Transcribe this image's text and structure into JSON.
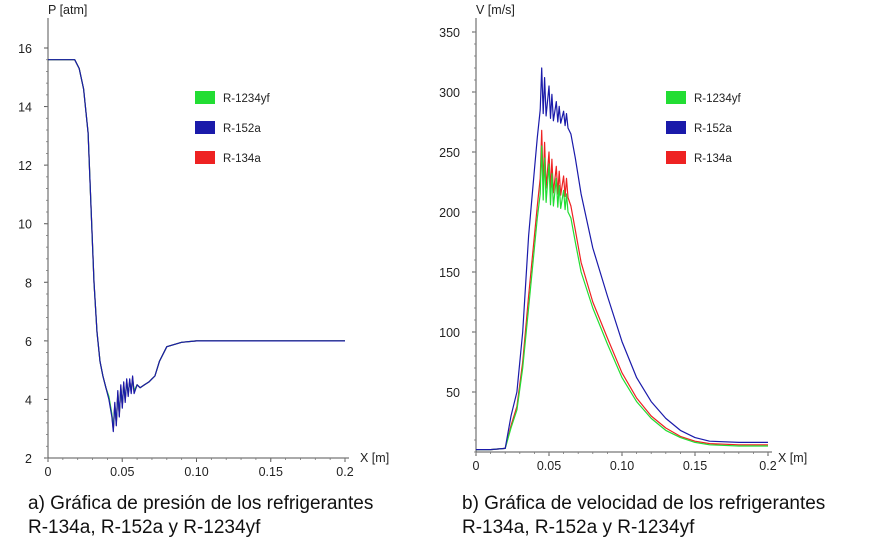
{
  "chart_data": [
    {
      "type": "line",
      "caption": {
        "line1": "a) Gráfica de presión de los refrigerantes",
        "line2": "R-134a, R-152a y R-1234yf"
      },
      "ylabel": "P [atm]",
      "xlabel": "X [m]",
      "xlim": [
        0,
        0.2
      ],
      "ylim": [
        2,
        16
      ],
      "x_ticks": [
        "0",
        "0.05",
        "0.10",
        "0.15",
        "0.2"
      ],
      "x_tick_values": [
        0,
        0.05,
        0.1,
        0.15,
        0.2
      ],
      "y_ticks": [
        "16",
        "14",
        "12",
        "10",
        "8",
        "6",
        "4",
        "2"
      ],
      "y_tick_values": [
        16,
        14,
        12,
        10,
        8,
        6,
        4,
        2
      ],
      "legend_position": "upper-right",
      "series": [
        {
          "name": "R-1234yf",
          "color": "#22dd33",
          "x": [
            0,
            0.012,
            0.018,
            0.021,
            0.024,
            0.027,
            0.029,
            0.031,
            0.033,
            0.035,
            0.037,
            0.039,
            0.041,
            0.043,
            0.044,
            0.045,
            0.046,
            0.047,
            0.048,
            0.049,
            0.05,
            0.051,
            0.052,
            0.053,
            0.054,
            0.055,
            0.056,
            0.057,
            0.058,
            0.06,
            0.062,
            0.065,
            0.068,
            0.07,
            0.072,
            0.075,
            0.08,
            0.09,
            0.1,
            0.12,
            0.15,
            0.18,
            0.2
          ],
          "y": [
            15.6,
            15.6,
            15.6,
            15.3,
            14.6,
            13.1,
            10.5,
            8.0,
            6.3,
            5.3,
            4.8,
            4.4,
            4.1,
            3.5,
            3.0,
            3.8,
            3.2,
            4.2,
            3.5,
            4.4,
            3.8,
            4.5,
            4.0,
            4.6,
            4.2,
            4.6,
            4.3,
            4.7,
            4.3,
            4.5,
            4.4,
            4.5,
            4.6,
            4.7,
            4.8,
            5.3,
            5.8,
            5.95,
            6.0,
            6.0,
            6.0,
            6.0,
            6.0
          ]
        },
        {
          "name": "R-152a",
          "color": "#1a1aaa",
          "x": [
            0,
            0.012,
            0.018,
            0.021,
            0.024,
            0.027,
            0.029,
            0.031,
            0.033,
            0.035,
            0.037,
            0.039,
            0.041,
            0.043,
            0.044,
            0.045,
            0.046,
            0.047,
            0.048,
            0.049,
            0.05,
            0.051,
            0.052,
            0.053,
            0.054,
            0.055,
            0.056,
            0.057,
            0.058,
            0.06,
            0.062,
            0.065,
            0.068,
            0.07,
            0.072,
            0.075,
            0.08,
            0.09,
            0.1,
            0.12,
            0.15,
            0.18,
            0.2
          ],
          "y": [
            15.6,
            15.6,
            15.6,
            15.3,
            14.6,
            13.1,
            10.5,
            8.0,
            6.3,
            5.3,
            4.8,
            4.4,
            4.0,
            3.4,
            2.9,
            3.9,
            3.1,
            4.3,
            3.4,
            4.5,
            3.7,
            4.6,
            3.9,
            4.7,
            4.1,
            4.7,
            4.2,
            4.8,
            4.2,
            4.5,
            4.4,
            4.5,
            4.6,
            4.7,
            4.8,
            5.3,
            5.8,
            5.95,
            6.0,
            6.0,
            6.0,
            6.0,
            6.0
          ]
        },
        {
          "name": "R-134a",
          "color": "#ee2222",
          "x": [
            0,
            0.012,
            0.018,
            0.021,
            0.024,
            0.027,
            0.029,
            0.031,
            0.033,
            0.035,
            0.037,
            0.039,
            0.041,
            0.043,
            0.044,
            0.045,
            0.046,
            0.047,
            0.048,
            0.049,
            0.05,
            0.051,
            0.052,
            0.053,
            0.054,
            0.055,
            0.056,
            0.057,
            0.058,
            0.06,
            0.062,
            0.065,
            0.068,
            0.07,
            0.072,
            0.075,
            0.08,
            0.09,
            0.1,
            0.12,
            0.15,
            0.18,
            0.2
          ],
          "y": [
            15.6,
            15.6,
            15.6,
            15.3,
            14.6,
            13.1,
            10.5,
            8.0,
            6.3,
            5.3,
            4.8,
            4.4,
            4.05,
            3.45,
            2.95,
            3.85,
            3.15,
            4.25,
            3.45,
            4.45,
            3.75,
            4.55,
            3.95,
            4.65,
            4.15,
            4.65,
            4.25,
            4.75,
            4.25,
            4.5,
            4.4,
            4.5,
            4.6,
            4.7,
            4.8,
            5.3,
            5.8,
            5.95,
            6.0,
            6.0,
            6.0,
            6.0,
            6.0
          ]
        }
      ]
    },
    {
      "type": "line",
      "caption": {
        "line1": "b) Gráfica de velocidad de los refrigerantes",
        "line2": "R-134a, R-152a y R-1234yf"
      },
      "ylabel": "V [m/s]",
      "xlabel": "X [m]",
      "xlim": [
        0,
        0.2
      ],
      "ylim": [
        0,
        350
      ],
      "x_ticks": [
        "0",
        "0.05",
        "0.10",
        "0.15",
        "0.2"
      ],
      "x_tick_values": [
        0,
        0.05,
        0.1,
        0.15,
        0.2
      ],
      "y_ticks": [
        "350",
        "300",
        "250",
        "200",
        "150",
        "100",
        "50"
      ],
      "y_tick_values": [
        350,
        300,
        250,
        200,
        150,
        100,
        50
      ],
      "legend_position": "upper-right",
      "series": [
        {
          "name": "R-1234yf",
          "color": "#22dd33",
          "x": [
            0,
            0.01,
            0.02,
            0.024,
            0.028,
            0.032,
            0.036,
            0.04,
            0.042,
            0.044,
            0.045,
            0.046,
            0.047,
            0.048,
            0.05,
            0.051,
            0.052,
            0.053,
            0.055,
            0.056,
            0.057,
            0.058,
            0.06,
            0.061,
            0.062,
            0.063,
            0.065,
            0.068,
            0.072,
            0.08,
            0.09,
            0.1,
            0.11,
            0.12,
            0.13,
            0.14,
            0.15,
            0.16,
            0.18,
            0.2
          ],
          "y": [
            2,
            2,
            3,
            20,
            35,
            70,
            120,
            170,
            195,
            215,
            255,
            210,
            245,
            208,
            240,
            206,
            232,
            205,
            228,
            204,
            222,
            203,
            218,
            202,
            215,
            200,
            195,
            175,
            150,
            120,
            90,
            62,
            42,
            28,
            18,
            12,
            8,
            6,
            5,
            5
          ]
        },
        {
          "name": "R-152a",
          "color": "#1a1aaa",
          "x": [
            0,
            0.01,
            0.02,
            0.024,
            0.028,
            0.032,
            0.036,
            0.04,
            0.042,
            0.044,
            0.045,
            0.046,
            0.047,
            0.048,
            0.05,
            0.051,
            0.052,
            0.053,
            0.055,
            0.056,
            0.057,
            0.058,
            0.06,
            0.061,
            0.062,
            0.063,
            0.065,
            0.068,
            0.072,
            0.08,
            0.09,
            0.1,
            0.11,
            0.12,
            0.13,
            0.14,
            0.15,
            0.16,
            0.18,
            0.2
          ],
          "y": [
            2,
            2,
            3,
            30,
            50,
            100,
            180,
            235,
            262,
            285,
            320,
            282,
            312,
            280,
            305,
            278,
            298,
            276,
            292,
            275,
            288,
            274,
            284,
            272,
            282,
            270,
            265,
            245,
            215,
            170,
            130,
            92,
            62,
            42,
            28,
            18,
            12,
            9,
            8,
            8
          ]
        },
        {
          "name": "R-134a",
          "color": "#ee2222",
          "x": [
            0,
            0.01,
            0.02,
            0.024,
            0.028,
            0.032,
            0.036,
            0.04,
            0.042,
            0.044,
            0.045,
            0.046,
            0.047,
            0.048,
            0.05,
            0.051,
            0.052,
            0.053,
            0.055,
            0.056,
            0.057,
            0.058,
            0.06,
            0.061,
            0.062,
            0.063,
            0.065,
            0.068,
            0.072,
            0.08,
            0.09,
            0.1,
            0.11,
            0.12,
            0.13,
            0.14,
            0.15,
            0.16,
            0.18,
            0.2
          ],
          "y": [
            2,
            2,
            3,
            22,
            38,
            75,
            130,
            180,
            205,
            228,
            268,
            222,
            258,
            220,
            250,
            218,
            244,
            216,
            238,
            215,
            234,
            214,
            230,
            213,
            228,
            212,
            205,
            185,
            158,
            125,
            95,
            66,
            45,
            30,
            20,
            13,
            9,
            7,
            6,
            6
          ]
        }
      ]
    }
  ]
}
